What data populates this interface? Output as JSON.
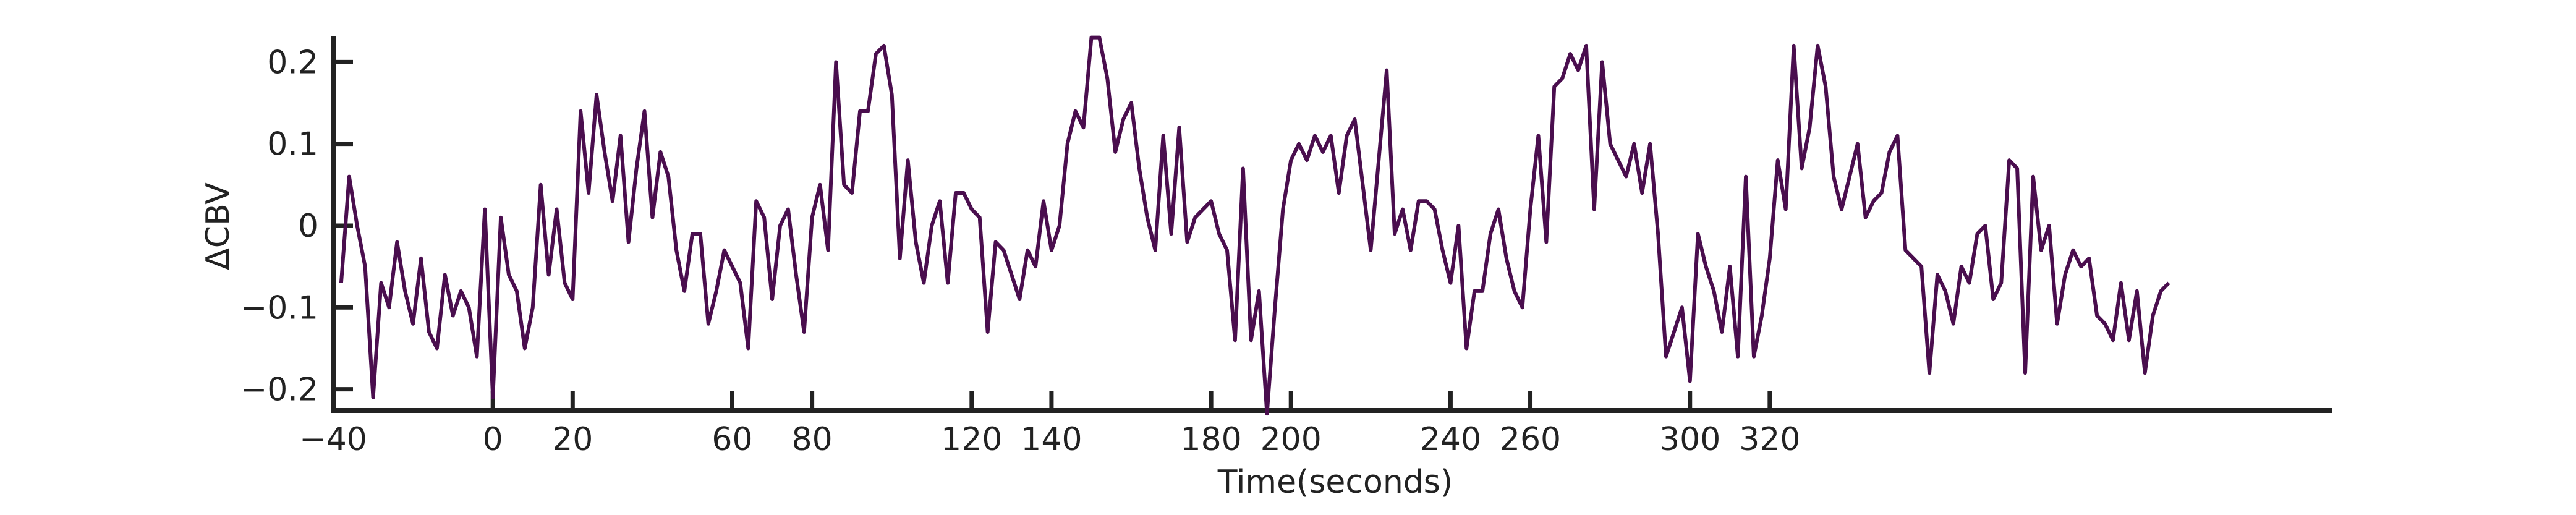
{
  "chart_data": {
    "type": "line",
    "xlabel": "Time(seconds)",
    "ylabel": "ΔCBV",
    "x": [
      -38,
      -36,
      -34,
      -32,
      -30,
      -28,
      -26,
      -24,
      -22,
      -20,
      -18,
      -16,
      -14,
      -12,
      -10,
      -8,
      -6,
      -4,
      -2,
      0,
      2,
      4,
      6,
      8,
      10,
      12,
      14,
      16,
      18,
      20,
      22,
      24,
      26,
      28,
      30,
      32,
      34,
      36,
      38,
      40,
      42,
      44,
      46,
      48,
      50,
      52,
      54,
      56,
      58,
      60,
      62,
      64,
      66,
      68,
      70,
      72,
      74,
      76,
      78,
      80,
      82,
      84,
      86,
      88,
      90,
      92,
      94,
      96,
      98,
      100,
      102,
      104,
      106,
      108,
      110,
      112,
      114,
      116,
      118,
      120,
      122,
      124,
      126,
      128,
      130,
      132,
      134,
      136,
      138,
      140,
      142,
      144,
      146,
      148,
      150,
      152,
      154,
      156,
      158,
      160,
      162,
      164,
      166,
      168,
      170,
      172,
      174,
      176,
      178,
      180,
      182,
      184,
      186,
      188,
      190,
      192,
      194,
      196,
      198,
      200,
      202,
      204,
      206,
      208,
      210,
      212,
      214,
      216,
      218,
      220,
      222,
      224,
      226,
      228,
      230,
      232,
      234,
      236,
      238,
      240,
      242,
      244,
      246,
      248,
      250,
      252,
      254,
      256,
      258,
      260,
      262,
      264,
      266,
      268,
      270,
      272,
      274,
      276,
      278,
      280,
      282,
      284,
      286,
      288,
      290,
      292,
      294,
      296,
      298,
      300,
      302,
      304,
      306,
      308,
      310,
      312,
      314,
      316,
      318,
      320,
      322,
      324,
      326,
      328,
      330,
      332,
      334,
      336,
      338,
      340,
      342,
      344,
      346,
      348,
      350,
      352,
      354,
      356,
      358,
      360,
      362,
      364,
      366,
      368,
      370,
      372,
      374,
      376,
      378,
      380,
      382,
      384,
      386,
      388,
      390,
      392,
      394,
      396,
      398,
      400,
      402,
      404,
      406,
      408,
      410,
      412,
      414,
      416,
      418,
      420
    ],
    "series": [
      {
        "color": "#4a0e4e",
        "values": [
          -0.07,
          0.06,
          0.0,
          -0.05,
          -0.21,
          -0.07,
          -0.1,
          -0.02,
          -0.08,
          -0.12,
          -0.04,
          -0.13,
          -0.15,
          -0.06,
          -0.11,
          -0.08,
          -0.1,
          -0.16,
          0.02,
          -0.21,
          0.01,
          -0.06,
          -0.08,
          -0.15,
          -0.1,
          0.05,
          -0.06,
          0.02,
          -0.07,
          -0.09,
          0.14,
          0.04,
          0.16,
          0.09,
          0.03,
          0.11,
          -0.02,
          0.07,
          0.14,
          0.01,
          0.09,
          0.06,
          -0.03,
          -0.08,
          -0.01,
          -0.01,
          -0.12,
          -0.08,
          -0.03,
          -0.05,
          -0.07,
          -0.15,
          0.03,
          0.01,
          -0.09,
          0.0,
          0.02,
          -0.06,
          -0.13,
          0.01,
          0.05,
          -0.03,
          0.2,
          0.05,
          0.04,
          0.14,
          0.14,
          0.21,
          0.22,
          0.16,
          -0.04,
          0.08,
          -0.02,
          -0.07,
          0.0,
          0.03,
          -0.07,
          0.04,
          0.04,
          0.02,
          0.01,
          -0.13,
          -0.02,
          -0.03,
          -0.06,
          -0.09,
          -0.03,
          -0.05,
          0.03,
          -0.03,
          0.0,
          0.1,
          0.14,
          0.12,
          0.23,
          0.23,
          0.18,
          0.09,
          0.13,
          0.15,
          0.07,
          0.01,
          -0.03,
          0.11,
          -0.01,
          0.12,
          -0.02,
          0.01,
          0.02,
          0.03,
          -0.01,
          -0.03,
          -0.14,
          0.07,
          -0.14,
          -0.08,
          -0.23,
          -0.1,
          0.02,
          0.08,
          0.1,
          0.08,
          0.11,
          0.09,
          0.11,
          0.04,
          0.11,
          0.13,
          0.05,
          -0.03,
          0.08,
          0.19,
          -0.01,
          0.02,
          -0.03,
          0.03,
          0.03,
          0.02,
          -0.03,
          -0.07,
          0.0,
          -0.15,
          -0.08,
          -0.08,
          -0.01,
          0.02,
          -0.04,
          -0.08,
          -0.1,
          0.02,
          0.11,
          -0.02,
          0.17,
          0.18,
          0.21,
          0.19,
          0.22,
          0.02,
          0.2,
          0.1,
          0.08,
          0.06,
          0.1,
          0.04,
          0.1,
          -0.01,
          -0.16,
          -0.13,
          -0.1,
          -0.19,
          -0.01,
          -0.05,
          -0.08,
          -0.13,
          -0.05,
          -0.16,
          0.06,
          -0.16,
          -0.11,
          -0.04,
          0.08,
          0.02,
          0.22,
          0.07,
          0.12,
          0.22,
          0.17,
          0.06,
          0.02,
          0.06,
          0.1,
          0.01,
          0.03,
          0.04,
          0.09,
          0.11,
          -0.03,
          -0.04,
          -0.05,
          -0.18,
          -0.06,
          -0.08,
          -0.12,
          -0.05,
          -0.07,
          -0.01,
          0.0,
          -0.09,
          -0.07,
          0.08,
          0.07,
          -0.18,
          0.06,
          -0.03,
          0.0,
          -0.12,
          -0.06,
          -0.03,
          -0.05,
          -0.04,
          -0.11,
          -0.12,
          -0.14,
          -0.07,
          -0.14,
          -0.08,
          -0.18,
          -0.11,
          -0.08,
          -0.07
        ]
      }
    ],
    "xlim": [
      -40,
      461
    ],
    "ylim": [
      -0.226,
      0.232
    ],
    "xticks": [
      {
        "value": -40,
        "label": "−40"
      },
      0,
      20,
      60,
      80,
      120,
      140,
      180,
      200,
      240,
      260,
      300,
      320
    ],
    "yticks": [
      {
        "value": -0.2,
        "label": "−0.2"
      },
      {
        "value": -0.1,
        "label": "−0.1"
      },
      0,
      0.1,
      0.2
    ]
  }
}
